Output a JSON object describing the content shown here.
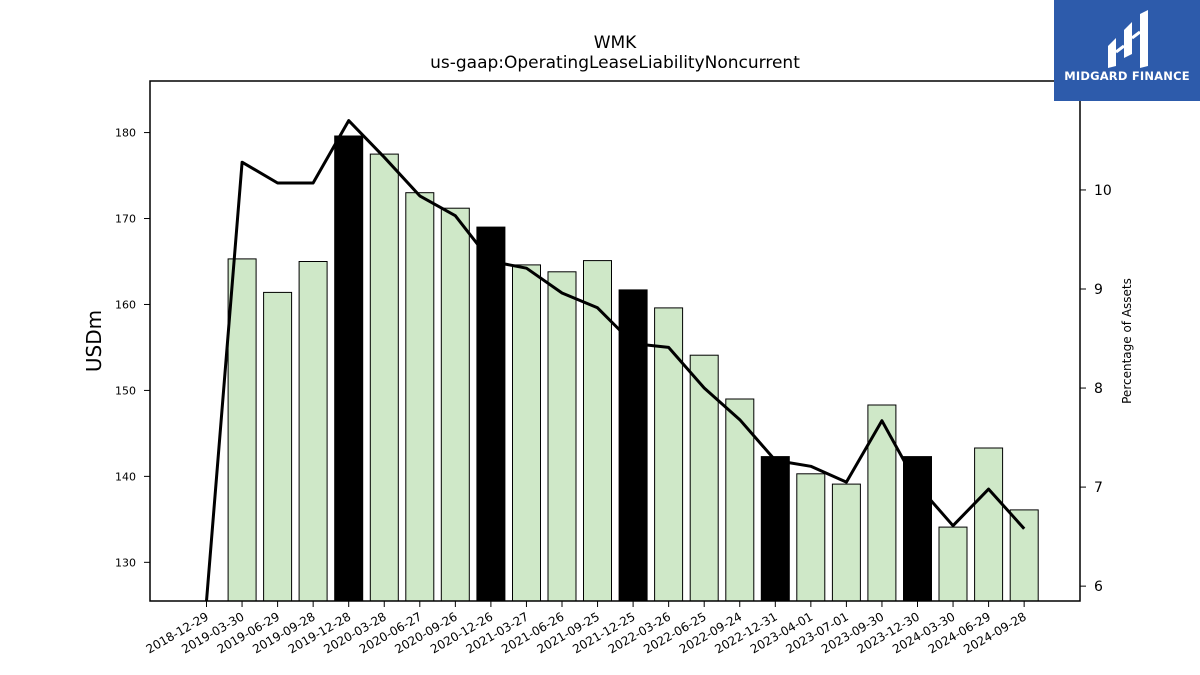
{
  "chart_data": {
    "type": "bar+line",
    "title": "WMK",
    "subtitle": "us-gaap:OperatingLeaseLiabilityNoncurrent",
    "ylabel": "USDm",
    "y2label": "Percentage of Assets",
    "categories": [
      "2018-12-29",
      "2019-03-30",
      "2019-06-29",
      "2019-09-28",
      "2019-12-28",
      "2020-03-28",
      "2020-06-27",
      "2020-09-26",
      "2020-12-26",
      "2021-03-27",
      "2021-06-26",
      "2021-09-25",
      "2021-12-25",
      "2022-03-26",
      "2022-06-25",
      "2022-09-24",
      "2022-12-31",
      "2023-04-01",
      "2023-07-01",
      "2023-09-30",
      "2023-12-30",
      "2024-03-30",
      "2024-06-29",
      "2024-09-28"
    ],
    "ylim": [
      125.5,
      186
    ],
    "y2lim": [
      5.85,
      11.1
    ],
    "yticks": [
      130,
      140,
      150,
      160,
      170,
      180
    ],
    "y2ticks": [
      6,
      7,
      8,
      9,
      10
    ],
    "series": [
      {
        "kind": "bar",
        "values": [
          null,
          165.3,
          161.4,
          165.0,
          179.6,
          177.5,
          173.0,
          171.2,
          169.0,
          164.6,
          163.8,
          165.1,
          161.7,
          159.6,
          154.1,
          149.0,
          142.3,
          140.3,
          139.1,
          148.3,
          142.3,
          134.1,
          143.3,
          136.1
        ],
        "highlight": [
          false,
          false,
          false,
          false,
          true,
          false,
          false,
          false,
          true,
          false,
          false,
          false,
          true,
          false,
          false,
          false,
          true,
          false,
          false,
          false,
          true,
          false,
          false,
          false
        ]
      },
      {
        "kind": "line",
        "axis": "right",
        "values": [
          5.6,
          10.28,
          10.07,
          10.07,
          10.7,
          10.33,
          9.94,
          9.74,
          9.28,
          9.21,
          8.96,
          8.81,
          8.45,
          8.41,
          8.0,
          7.68,
          7.27,
          7.21,
          7.05,
          7.67,
          7.02,
          6.61,
          6.98,
          6.58
        ]
      }
    ],
    "colors": {
      "bar": "#cfe8c8",
      "bar_highlight": "#000000",
      "bar_edge": "#000000",
      "line": "#000000"
    },
    "grid": false,
    "legend": "none"
  },
  "brand": {
    "logo_text": "MIDGARD FINANCE",
    "logo_color": "#2d5bab"
  }
}
